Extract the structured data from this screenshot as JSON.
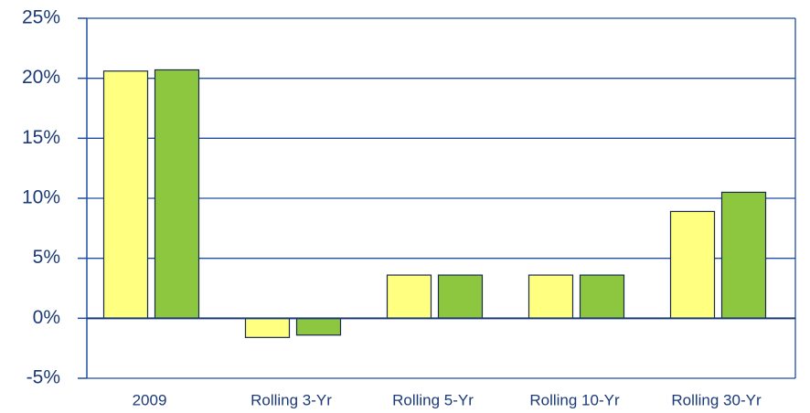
{
  "chart_data": {
    "type": "bar",
    "categories": [
      "2009",
      "Rolling 3-Yr",
      "Rolling 5-Yr",
      "Rolling 10-Yr",
      "Rolling 30-Yr"
    ],
    "series": [
      {
        "color": "#ffff80",
        "values": [
          20.6,
          -1.6,
          3.6,
          3.6,
          8.9
        ]
      },
      {
        "color": "#8dc63f",
        "values": [
          20.7,
          -1.4,
          3.6,
          3.6,
          10.5
        ]
      }
    ],
    "ylim": [
      -5,
      25
    ],
    "yticks": [
      {
        "value": -5,
        "label": "-5%"
      },
      {
        "value": 0,
        "label": "0%"
      },
      {
        "value": 5,
        "label": "5%"
      },
      {
        "value": 10,
        "label": "10%"
      },
      {
        "value": 15,
        "label": "15%"
      },
      {
        "value": 20,
        "label": "20%"
      },
      {
        "value": 25,
        "label": "25%"
      }
    ],
    "grid": true
  }
}
